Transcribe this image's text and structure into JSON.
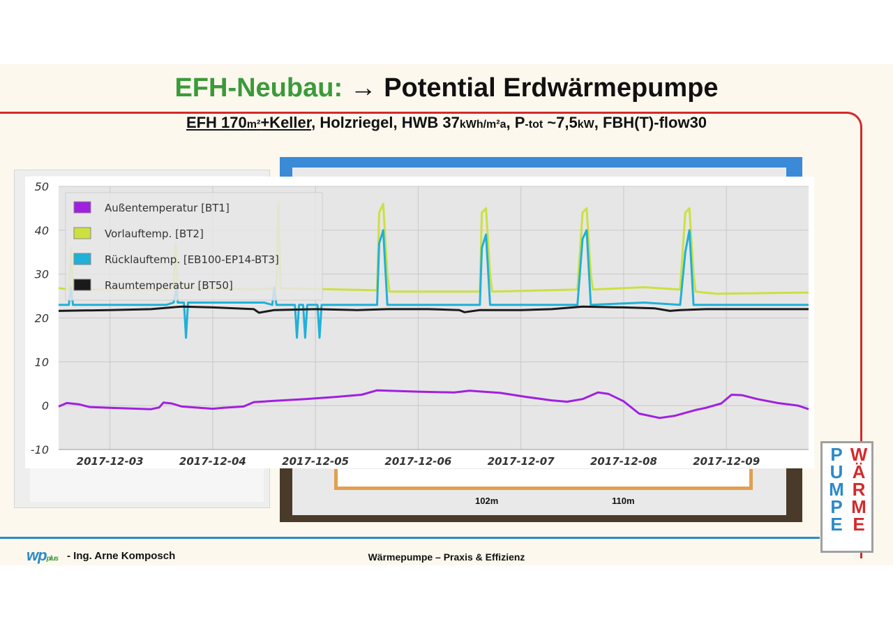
{
  "slide": {
    "title_green": "EFH-Neubau:",
    "title_dark": "→ Potential Erdwärmepumpe",
    "subtitle_u": "EFH 170",
    "subtitle_u_unit": "m²",
    "subtitle_u2": "+Keller",
    "subtitle_1": ", Holzriegel, HWB 37",
    "subtitle_unit1": "kWh/m²a",
    "subtitle_2": ", P",
    "subtitle_unit2": "-tot",
    "subtitle_3": " ~7,5",
    "subtitle_unit3": "kW",
    "subtitle_4": ", FBH(T)-flow30",
    "logo_wp": "wp",
    "logo_plus": "plus",
    "author": "- Ing. Arne Komposch",
    "footer": "Wärmepumpe – Praxis & Effizienz",
    "brand_col1": [
      "P",
      "U",
      "M",
      "P",
      "E"
    ],
    "brand_col2": [
      "W",
      "Ä",
      "R",
      "M",
      "E"
    ],
    "plan_label_1": "102m",
    "plan_label_2": "110m"
  },
  "colors": {
    "title_green": "#3b9a3a",
    "accent_red": "#d42a2a",
    "accent_blue": "#2a8ac8",
    "plot_bg": "#e6e6e6"
  },
  "chart_data": {
    "type": "line",
    "ylim": [
      -10,
      50
    ],
    "yticks": [
      -10,
      0,
      10,
      20,
      30,
      40,
      50
    ],
    "xlim": [
      0,
      7.3
    ],
    "xticks": [
      {
        "x": 0.5,
        "label": "2017-12-03"
      },
      {
        "x": 1.5,
        "label": "2017-12-04"
      },
      {
        "x": 2.5,
        "label": "2017-12-05"
      },
      {
        "x": 3.5,
        "label": "2017-12-06"
      },
      {
        "x": 4.5,
        "label": "2017-12-07"
      },
      {
        "x": 5.5,
        "label": "2017-12-08"
      },
      {
        "x": 6.5,
        "label": "2017-12-09"
      }
    ],
    "grid": true,
    "legend_position": "top-left",
    "series": [
      {
        "name": "Außentemperatur [BT1]",
        "color": "#a020e0",
        "points": [
          [
            0.0,
            -0.2
          ],
          [
            0.08,
            0.6
          ],
          [
            0.2,
            0.3
          ],
          [
            0.3,
            -0.3
          ],
          [
            0.5,
            -0.5
          ],
          [
            0.9,
            -0.8
          ],
          [
            0.98,
            -0.4
          ],
          [
            1.02,
            0.7
          ],
          [
            1.1,
            0.5
          ],
          [
            1.2,
            -0.2
          ],
          [
            1.5,
            -0.7
          ],
          [
            1.6,
            -0.5
          ],
          [
            1.8,
            -0.2
          ],
          [
            1.9,
            0.8
          ],
          [
            2.1,
            1.1
          ],
          [
            2.4,
            1.5
          ],
          [
            2.7,
            2.0
          ],
          [
            2.95,
            2.5
          ],
          [
            3.1,
            3.5
          ],
          [
            3.5,
            3.2
          ],
          [
            3.85,
            3.0
          ],
          [
            4.0,
            3.4
          ],
          [
            4.3,
            2.9
          ],
          [
            4.55,
            2.0
          ],
          [
            4.8,
            1.2
          ],
          [
            4.95,
            0.9
          ],
          [
            5.1,
            1.5
          ],
          [
            5.25,
            3.0
          ],
          [
            5.35,
            2.7
          ],
          [
            5.5,
            1.0
          ],
          [
            5.65,
            -1.8
          ],
          [
            5.85,
            -2.8
          ],
          [
            6.0,
            -2.3
          ],
          [
            6.2,
            -1.0
          ],
          [
            6.3,
            -0.5
          ],
          [
            6.45,
            0.5
          ],
          [
            6.55,
            2.5
          ],
          [
            6.65,
            2.4
          ],
          [
            6.8,
            1.5
          ],
          [
            7.0,
            0.6
          ],
          [
            7.2,
            0.0
          ],
          [
            7.3,
            -0.8
          ]
        ]
      },
      {
        "name": "Vorlauftemp. [BT2]",
        "color": "#cce040",
        "points": [
          [
            0.0,
            26.8
          ],
          [
            0.1,
            26.5
          ],
          [
            0.12,
            36
          ],
          [
            0.14,
            26.5
          ],
          [
            1.0,
            26.5
          ],
          [
            1.12,
            26.8
          ],
          [
            1.14,
            37
          ],
          [
            1.16,
            27.0
          ],
          [
            1.9,
            26.5
          ],
          [
            2.12,
            26.8
          ],
          [
            2.14,
            46
          ],
          [
            2.16,
            26.8
          ],
          [
            3.1,
            26.3
          ],
          [
            3.12,
            44
          ],
          [
            3.16,
            46
          ],
          [
            3.2,
            30
          ],
          [
            3.22,
            26.0
          ],
          [
            4.1,
            26.0
          ],
          [
            4.12,
            44
          ],
          [
            4.16,
            45
          ],
          [
            4.2,
            30
          ],
          [
            4.22,
            26.0
          ],
          [
            5.05,
            26.5
          ],
          [
            5.1,
            44
          ],
          [
            5.14,
            45
          ],
          [
            5.18,
            30
          ],
          [
            5.2,
            26.5
          ],
          [
            5.7,
            27.0
          ],
          [
            6.05,
            26.5
          ],
          [
            6.1,
            44
          ],
          [
            6.14,
            45
          ],
          [
            6.18,
            30
          ],
          [
            6.2,
            26.0
          ],
          [
            6.4,
            25.5
          ],
          [
            7.3,
            25.8
          ]
        ]
      },
      {
        "name": "Rücklauftemp. [EB100-EP14-BT3]",
        "color": "#20b0d8",
        "points": [
          [
            0.0,
            23.0
          ],
          [
            0.1,
            23.0
          ],
          [
            0.12,
            27
          ],
          [
            0.14,
            23.0
          ],
          [
            1.05,
            23.0
          ],
          [
            1.12,
            23.5
          ],
          [
            1.15,
            27
          ],
          [
            1.16,
            23.5
          ],
          [
            1.22,
            23.5
          ],
          [
            1.24,
            15.5
          ],
          [
            1.26,
            23.5
          ],
          [
            2.0,
            23.5
          ],
          [
            2.08,
            23.0
          ],
          [
            2.1,
            27
          ],
          [
            2.12,
            23.0
          ],
          [
            2.3,
            23.0
          ],
          [
            2.32,
            15.5
          ],
          [
            2.34,
            23.0
          ],
          [
            2.38,
            23.0
          ],
          [
            2.4,
            15.5
          ],
          [
            2.42,
            23.0
          ],
          [
            2.52,
            23.0
          ],
          [
            2.54,
            15.5
          ],
          [
            2.56,
            23.0
          ],
          [
            3.1,
            23.0
          ],
          [
            3.12,
            37
          ],
          [
            3.16,
            40
          ],
          [
            3.2,
            23.0
          ],
          [
            4.1,
            23.0
          ],
          [
            4.12,
            36
          ],
          [
            4.16,
            39
          ],
          [
            4.2,
            23.0
          ],
          [
            5.05,
            23.0
          ],
          [
            5.1,
            38
          ],
          [
            5.14,
            40
          ],
          [
            5.18,
            23.0
          ],
          [
            5.7,
            23.5
          ],
          [
            6.05,
            23.0
          ],
          [
            6.1,
            35
          ],
          [
            6.14,
            40
          ],
          [
            6.18,
            23.0
          ],
          [
            7.3,
            23.0
          ]
        ]
      },
      {
        "name": "Raumtemperatur [BT50]",
        "color": "#1a1a1a",
        "points": [
          [
            0.0,
            21.6
          ],
          [
            0.5,
            21.8
          ],
          [
            0.9,
            22.0
          ],
          [
            1.2,
            22.6
          ],
          [
            1.5,
            22.4
          ],
          [
            1.9,
            22.0
          ],
          [
            1.95,
            21.2
          ],
          [
            2.1,
            21.8
          ],
          [
            2.5,
            22.0
          ],
          [
            2.9,
            21.8
          ],
          [
            3.2,
            22.0
          ],
          [
            3.6,
            22.0
          ],
          [
            3.9,
            21.8
          ],
          [
            3.95,
            21.3
          ],
          [
            4.1,
            21.8
          ],
          [
            4.5,
            21.8
          ],
          [
            4.8,
            22.0
          ],
          [
            5.1,
            22.6
          ],
          [
            5.5,
            22.4
          ],
          [
            5.8,
            22.2
          ],
          [
            5.95,
            21.6
          ],
          [
            6.05,
            21.8
          ],
          [
            6.3,
            22.0
          ],
          [
            6.6,
            22.0
          ],
          [
            7.3,
            22.0
          ]
        ]
      }
    ]
  }
}
